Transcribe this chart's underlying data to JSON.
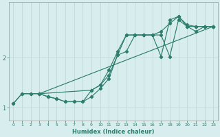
{
  "xlabel": "Humidex (Indice chaleur)",
  "bg_color": "#d8eeee",
  "grid_color": "#c8e0e0",
  "line_color": "#2e7d6e",
  "xlim": [
    -0.5,
    23.5
  ],
  "ylim": [
    0.75,
    3.1
  ],
  "yticks": [
    1,
    2
  ],
  "xticks": [
    0,
    1,
    2,
    3,
    4,
    5,
    6,
    7,
    8,
    9,
    10,
    11,
    12,
    13,
    14,
    15,
    16,
    17,
    18,
    19,
    20,
    21,
    22,
    23
  ],
  "lines": [
    {
      "points": [
        [
          0,
          1.08
        ],
        [
          1,
          1.28
        ],
        [
          2,
          1.28
        ],
        [
          3,
          1.28
        ],
        [
          4,
          1.22
        ],
        [
          5,
          1.18
        ],
        [
          6,
          1.12
        ],
        [
          7,
          1.12
        ],
        [
          8,
          1.12
        ],
        [
          9,
          1.35
        ],
        [
          10,
          1.45
        ],
        [
          11,
          1.65
        ],
        [
          12,
          2.05
        ],
        [
          13,
          2.12
        ],
        [
          14,
          2.45
        ],
        [
          15,
          2.45
        ],
        [
          16,
          2.45
        ],
        [
          17,
          2.45
        ],
        [
          18,
          2.02
        ],
        [
          19,
          2.75
        ],
        [
          20,
          2.62
        ],
        [
          21,
          2.52
        ],
        [
          22,
          2.62
        ],
        [
          23,
          2.62
        ]
      ]
    },
    {
      "points": [
        [
          0,
          1.08
        ],
        [
          1,
          1.28
        ],
        [
          2,
          1.28
        ],
        [
          3,
          1.28
        ],
        [
          23,
          2.62
        ]
      ]
    },
    {
      "points": [
        [
          3,
          1.28
        ],
        [
          9,
          1.35
        ],
        [
          10,
          1.45
        ],
        [
          11,
          1.75
        ],
        [
          12,
          2.12
        ],
        [
          13,
          2.45
        ],
        [
          14,
          2.45
        ],
        [
          15,
          2.45
        ],
        [
          16,
          2.45
        ],
        [
          17,
          2.52
        ],
        [
          18,
          2.68
        ],
        [
          19,
          2.82
        ],
        [
          20,
          2.65
        ],
        [
          21,
          2.62
        ],
        [
          22,
          2.62
        ],
        [
          23,
          2.62
        ]
      ]
    },
    {
      "points": [
        [
          3,
          1.28
        ],
        [
          4,
          1.22
        ],
        [
          5,
          1.18
        ],
        [
          6,
          1.12
        ],
        [
          7,
          1.12
        ],
        [
          8,
          1.12
        ],
        [
          9,
          1.22
        ],
        [
          10,
          1.38
        ],
        [
          11,
          1.58
        ],
        [
          12,
          2.05
        ],
        [
          13,
          2.45
        ],
        [
          14,
          2.45
        ],
        [
          15,
          2.45
        ],
        [
          16,
          2.45
        ],
        [
          17,
          2.02
        ],
        [
          18,
          2.75
        ],
        [
          19,
          2.82
        ],
        [
          20,
          2.62
        ],
        [
          21,
          2.62
        ],
        [
          22,
          2.62
        ],
        [
          23,
          2.62
        ]
      ]
    }
  ]
}
